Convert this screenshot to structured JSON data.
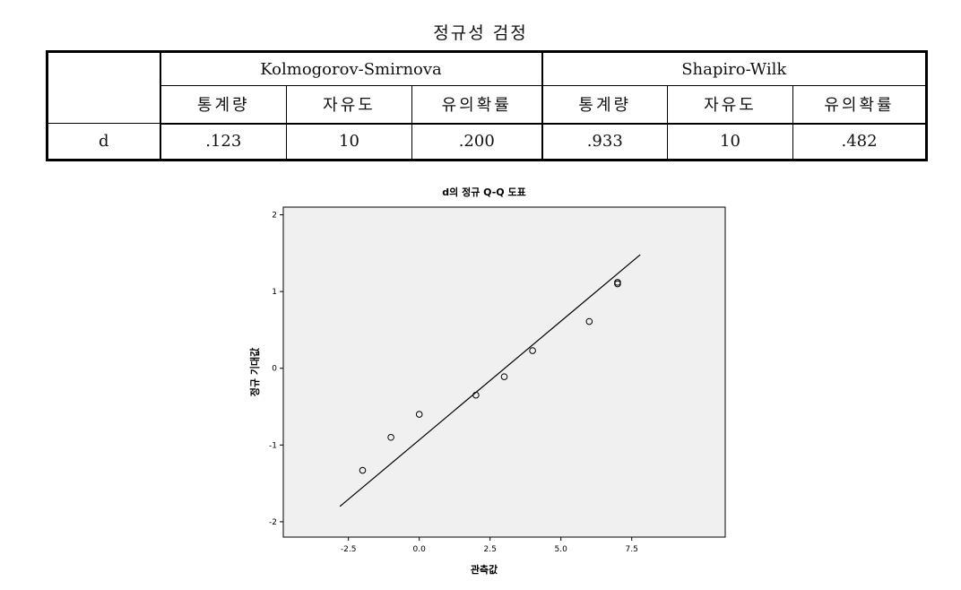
{
  "table": {
    "title": "정규성 검정",
    "groups": [
      "Kolmogorov-Smirnova",
      "Shapiro-Wilk"
    ],
    "columns": [
      "통계량",
      "자유도",
      "유의확률",
      "통계량",
      "자유도",
      "유의확률"
    ],
    "rows": [
      {
        "label": "d",
        "values": [
          ".123",
          "10",
          ".200",
          ".933",
          "10",
          ".482"
        ]
      }
    ]
  },
  "chart_data": {
    "type": "scatter",
    "title": "d의 정규 Q-Q 도표",
    "xlabel": "관측값",
    "ylabel": "정규 기대값",
    "xlim": [
      -4.8,
      10.8
    ],
    "ylim": [
      -2.2,
      2.1
    ],
    "xticks": [
      -2.5,
      0.0,
      2.5,
      5.0,
      7.5
    ],
    "xtick_labels": [
      "-2.5",
      "0.0",
      "2.5",
      "5.0",
      "7.5"
    ],
    "yticks": [
      -2,
      -1,
      0,
      1,
      2
    ],
    "ytick_labels": [
      "-2",
      "-1",
      "0",
      "1",
      "2"
    ],
    "grid": false,
    "points": [
      {
        "x": -2,
        "y": -1.33
      },
      {
        "x": -1,
        "y": -0.9
      },
      {
        "x": 0,
        "y": -0.6
      },
      {
        "x": 2,
        "y": -0.35
      },
      {
        "x": 3,
        "y": -0.11
      },
      {
        "x": 4,
        "y": 0.23
      },
      {
        "x": 6,
        "y": 0.61
      },
      {
        "x": 7,
        "y": 1.1
      },
      {
        "x": 7,
        "y": 1.12
      }
    ],
    "reference_line": {
      "x": [
        -2.8,
        7.8
      ],
      "y": [
        -1.8,
        1.48
      ]
    },
    "colors": {
      "plot_background": "#f0f0f0",
      "outer_background": "#ffffff",
      "marks": "#000000"
    }
  }
}
